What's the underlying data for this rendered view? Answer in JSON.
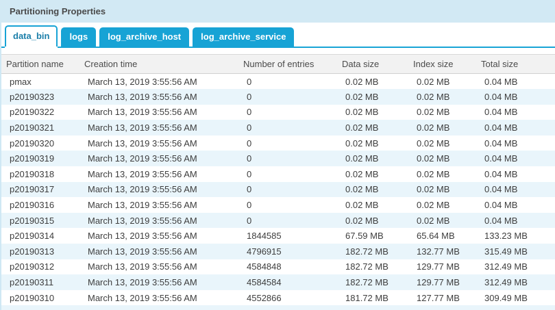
{
  "panel": {
    "title": "Partitioning Properties"
  },
  "tabs": [
    {
      "label": "data_bin",
      "active": true
    },
    {
      "label": "logs",
      "active": false
    },
    {
      "label": "log_archive_host",
      "active": false
    },
    {
      "label": "log_archive_service",
      "active": false
    }
  ],
  "table": {
    "columns": [
      "Partition name",
      "Creation time",
      "Number of entries",
      "Data size",
      "Index size",
      "Total size"
    ],
    "rows": [
      [
        "pmax",
        "March 13, 2019 3:55:56 AM",
        "0",
        "0.02 MB",
        "0.02 MB",
        "0.04 MB"
      ],
      [
        "p20190323",
        "March 13, 2019 3:55:56 AM",
        "0",
        "0.02 MB",
        "0.02 MB",
        "0.04 MB"
      ],
      [
        "p20190322",
        "March 13, 2019 3:55:56 AM",
        "0",
        "0.02 MB",
        "0.02 MB",
        "0.04 MB"
      ],
      [
        "p20190321",
        "March 13, 2019 3:55:56 AM",
        "0",
        "0.02 MB",
        "0.02 MB",
        "0.04 MB"
      ],
      [
        "p20190320",
        "March 13, 2019 3:55:56 AM",
        "0",
        "0.02 MB",
        "0.02 MB",
        "0.04 MB"
      ],
      [
        "p20190319",
        "March 13, 2019 3:55:56 AM",
        "0",
        "0.02 MB",
        "0.02 MB",
        "0.04 MB"
      ],
      [
        "p20190318",
        "March 13, 2019 3:55:56 AM",
        "0",
        "0.02 MB",
        "0.02 MB",
        "0.04 MB"
      ],
      [
        "p20190317",
        "March 13, 2019 3:55:56 AM",
        "0",
        "0.02 MB",
        "0.02 MB",
        "0.04 MB"
      ],
      [
        "p20190316",
        "March 13, 2019 3:55:56 AM",
        "0",
        "0.02 MB",
        "0.02 MB",
        "0.04 MB"
      ],
      [
        "p20190315",
        "March 13, 2019 3:55:56 AM",
        "0",
        "0.02 MB",
        "0.02 MB",
        "0.04 MB"
      ],
      [
        "p20190314",
        "March 13, 2019 3:55:56 AM",
        "1844585",
        "67.59 MB",
        "65.64 MB",
        "133.23 MB"
      ],
      [
        "p20190313",
        "March 13, 2019 3:55:56 AM",
        "4796915",
        "182.72 MB",
        "132.77 MB",
        "315.49 MB"
      ],
      [
        "p20190312",
        "March 13, 2019 3:55:56 AM",
        "4584848",
        "182.72 MB",
        "129.77 MB",
        "312.49 MB"
      ],
      [
        "p20190311",
        "March 13, 2019 3:55:56 AM",
        "4584584",
        "182.72 MB",
        "129.77 MB",
        "312.49 MB"
      ],
      [
        "p20190310",
        "March 13, 2019 3:55:56 AM",
        "4552866",
        "181.72 MB",
        "127.77 MB",
        "309.49 MB"
      ]
    ]
  },
  "colors": {
    "accent_blue": "#17a3d5",
    "title_bar_bg": "#d2e9f4",
    "active_tab_text": "#1a7ea9",
    "alt_row_bg": "#e9f5fb",
    "header_bg": "#f2f2f2",
    "body_text": "#3d3d3d"
  }
}
